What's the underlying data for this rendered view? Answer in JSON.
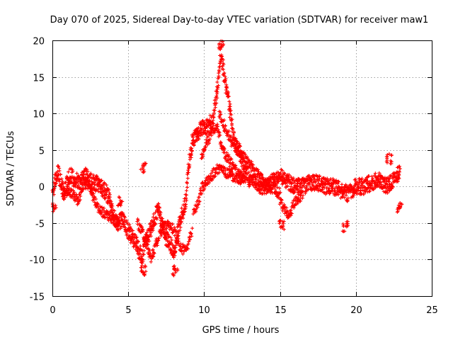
{
  "chart_data": {
    "type": "scatter",
    "title": "Day 070 of 2025, Sidereal Day-to-day VTEC variation (SDTVAR) for receiver maw1",
    "xlabel": "GPS time / hours",
    "ylabel": "SDTVAR / TECUs",
    "xlim": [
      0,
      25
    ],
    "ylim": [
      -15,
      20
    ],
    "xticks": [
      "0",
      "5",
      "10",
      "15",
      "20",
      "25"
    ],
    "yticks": [
      "-15",
      "-10",
      "-5",
      "0",
      "5",
      "10",
      "15",
      "20"
    ],
    "grid": true,
    "marker": "+",
    "color": "#ff0000",
    "series": [
      {
        "name": "SDTVAR",
        "trace_x": [
          0.0,
          0.1,
          0.2,
          0.3,
          0.4,
          0.5,
          0.6,
          0.7,
          0.8,
          0.9,
          1.0,
          1.2,
          1.5,
          1.8,
          2.0,
          2.2,
          2.4,
          2.6,
          2.8,
          3.0,
          3.2,
          3.4,
          3.6,
          3.8,
          4.0,
          4.3,
          4.6,
          5.0,
          5.3,
          5.6,
          5.9,
          6.0,
          6.2,
          6.5,
          6.8,
          7.0,
          7.2,
          7.5,
          7.8,
          8.0,
          8.2,
          8.5,
          8.8,
          9.0,
          9.2,
          9.5,
          9.8,
          10.0,
          10.3,
          10.6,
          10.9,
          11.1,
          11.2,
          11.4,
          11.6,
          11.8,
          12.0,
          12.3,
          12.6,
          13.0,
          13.4,
          13.8,
          14.2,
          14.6,
          15.0,
          15.3,
          15.6,
          16.0,
          16.5,
          17.0,
          17.5,
          18.0,
          18.5,
          19.0,
          19.5,
          20.0,
          20.5,
          21.0,
          21.5,
          22.0,
          22.5,
          22.9
        ],
        "trace_y": [
          -2,
          0,
          1,
          1.5,
          2,
          1,
          0,
          -0.5,
          -1,
          0,
          1,
          1.5,
          1,
          0.5,
          1,
          1.5,
          1,
          0.5,
          0.5,
          0.3,
          0,
          -0.5,
          -1,
          -2,
          -4,
          -5,
          -4.5,
          -6,
          -7,
          -8,
          -10,
          -9,
          -7,
          -6,
          -4,
          -3,
          -5,
          -7,
          -8,
          -9,
          -7,
          -4,
          -2,
          3,
          6,
          7,
          8,
          8,
          8.5,
          9,
          14,
          18.5,
          17,
          14,
          12,
          9,
          6,
          5,
          3,
          1,
          0.5,
          0,
          0,
          1,
          1.5,
          1,
          0.5,
          0,
          0,
          0.5,
          0.5,
          0,
          0,
          -0.5,
          -1,
          0,
          0,
          0.5,
          1,
          0,
          1,
          2
        ],
        "branches": [
          {
            "trace_x": [
              9.8,
              10.2,
              10.6,
              10.9,
              11.2,
              11.5,
              11.8,
              12.2,
              12.6
            ],
            "trace_y": [
              4,
              6,
              8,
              8,
              5,
              4,
              3,
              2,
              1
            ]
          },
          {
            "trace_x": [
              9.3,
              9.6,
              9.9,
              10.3,
              10.7,
              11.0,
              11.4,
              11.8,
              12.3,
              12.8
            ],
            "trace_y": [
              -4,
              -2,
              0,
              1,
              2,
              2.5,
              2,
              1.5,
              1,
              1
            ]
          },
          {
            "trace_x": [
              11.0,
              11.4,
              11.8,
              12.2,
              12.6,
              13.0,
              13.4,
              13.8,
              14.2,
              14.6,
              15.0
            ],
            "trace_y": [
              10,
              8,
              6,
              5,
              4,
              3,
              2,
              1,
              0,
              -0.5,
              -1
            ]
          },
          {
            "trace_x": [
              5.6,
              5.9,
              6.2,
              6.5,
              6.8,
              7.2,
              7.6,
              8.0,
              8.4,
              8.8,
              9.2
            ],
            "trace_y": [
              -5,
              -6,
              -8,
              -10,
              -8,
              -6,
              -5,
              -6,
              -8,
              -9,
              -6
            ]
          },
          {
            "trace_x": [
              0.7,
              1.0,
              1.4,
              1.7,
              2.0,
              2.3,
              2.6,
              3.0,
              3.3,
              3.7,
              4.0,
              4.4
            ],
            "trace_y": [
              -1,
              -0.5,
              -1,
              -2,
              0,
              0.5,
              -1,
              -3,
              -3.5,
              -4,
              -4.5,
              -5
            ]
          },
          {
            "trace_x": [
              15.0,
              15.3,
              15.6,
              16.0,
              16.5
            ],
            "trace_y": [
              -2,
              -3,
              -4,
              -2,
              -1
            ]
          }
        ],
        "clusters": [
          {
            "x": 6.0,
            "y": 2.5
          },
          {
            "x": 19.3,
            "y": -5.5
          },
          {
            "x": 22.2,
            "y": 3.8
          },
          {
            "x": 22.9,
            "y": -2.8
          },
          {
            "x": 15.1,
            "y": -5.3
          },
          {
            "x": 11.1,
            "y": 19.5
          },
          {
            "x": 4.5,
            "y": -2.0
          },
          {
            "x": 0.1,
            "y": -3.0
          },
          {
            "x": 8.1,
            "y": -11.5
          },
          {
            "x": 6.0,
            "y": -11.5
          }
        ]
      }
    ]
  }
}
